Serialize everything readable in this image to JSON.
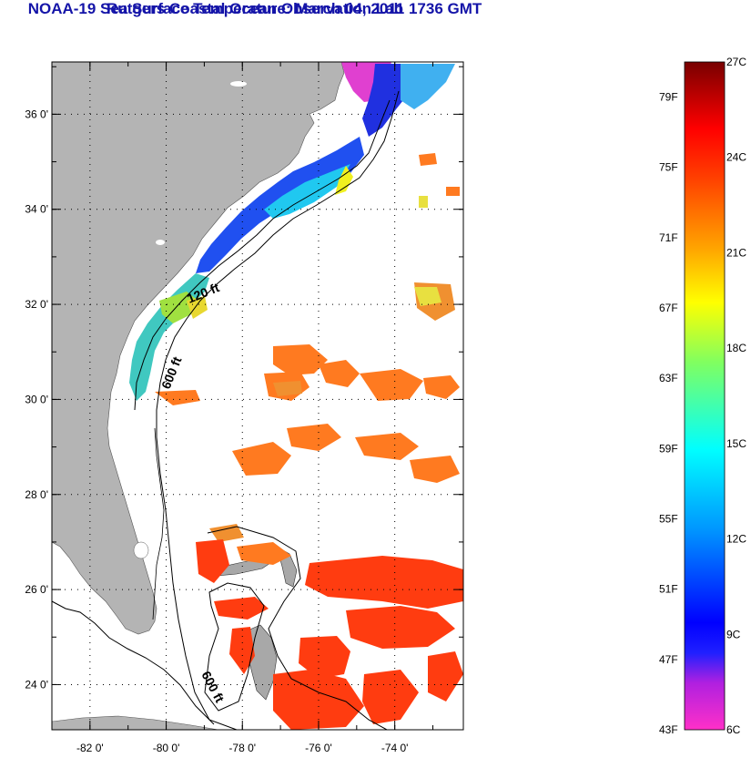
{
  "title": "NOAA-19 Sea Surface Temperature:  March 04, 2011 1736 GMT",
  "subtitle": "Rutgers Coastal Ocean Observation Lab",
  "map": {
    "lon_range": [
      -83,
      -72.2
    ],
    "lat_range": [
      23.05,
      37.1
    ],
    "lat_ticks": [
      "36 0'",
      "34 0'",
      "32 0'",
      "30 0'",
      "28 0'",
      "26 0'",
      "24 0'"
    ],
    "lon_ticks": [
      "-82 0'",
      "-80 0'",
      "-78 0'",
      "-76 0'",
      "-74 0'"
    ],
    "grid": "dotted",
    "land_color": "#b4b4b4",
    "contour_labels": [
      "120 ft",
      "600 ft",
      "600 ft"
    ]
  },
  "colorbar": {
    "fahrenheit_labels": [
      "79F",
      "75F",
      "71F",
      "67F",
      "63F",
      "59F",
      "55F",
      "51F",
      "47F",
      "43F"
    ],
    "celsius_labels": [
      "27C",
      "24C",
      "21C",
      "18C",
      "15C",
      "12C",
      "9C",
      "6C"
    ],
    "range_f": [
      43,
      81
    ],
    "range_c": [
      6,
      27
    ]
  }
}
